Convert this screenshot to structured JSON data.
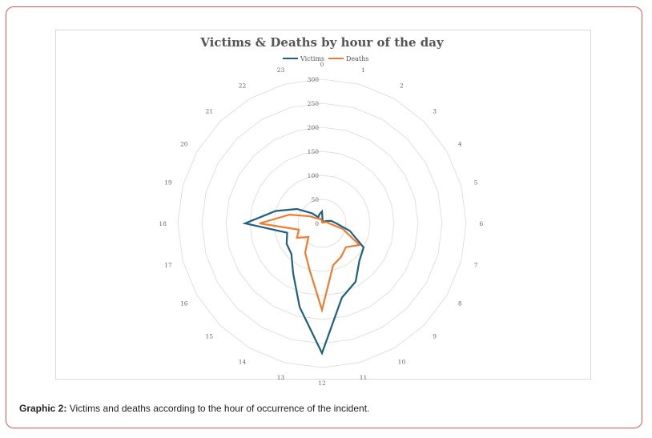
{
  "caption": {
    "label": "Graphic 2:",
    "text": "Victims and deaths according to the hour of occurrence of the incident."
  },
  "chart_data": {
    "type": "radar",
    "title": "Victims & Deaths by hour of the day",
    "categories": [
      "0",
      "1",
      "2",
      "3",
      "4",
      "5",
      "6",
      "7",
      "8",
      "9",
      "10",
      "11",
      "12",
      "13",
      "14",
      "15",
      "16",
      "17",
      "18",
      "19",
      "20",
      "21",
      "22",
      "23"
    ],
    "rticks": [
      0,
      50,
      100,
      150,
      200,
      250,
      300
    ],
    "rlim": [
      0,
      300
    ],
    "grid": true,
    "legend_position": "top",
    "series": [
      {
        "name": "Victims",
        "color": "#1f5f7f",
        "values": [
          25,
          5,
          5,
          5,
          10,
          20,
          30,
          60,
          100,
          110,
          140,
          160,
          270,
          180,
          120,
          90,
          85,
          75,
          160,
          100,
          60,
          30,
          15,
          20
        ]
      },
      {
        "name": "Deaths",
        "color": "#ec7c30",
        "values": [
          5,
          2,
          2,
          2,
          5,
          10,
          15,
          45,
          90,
          70,
          80,
          90,
          180,
          100,
          70,
          40,
          60,
          50,
          130,
          70,
          30,
          15,
          10,
          10
        ]
      }
    ]
  }
}
